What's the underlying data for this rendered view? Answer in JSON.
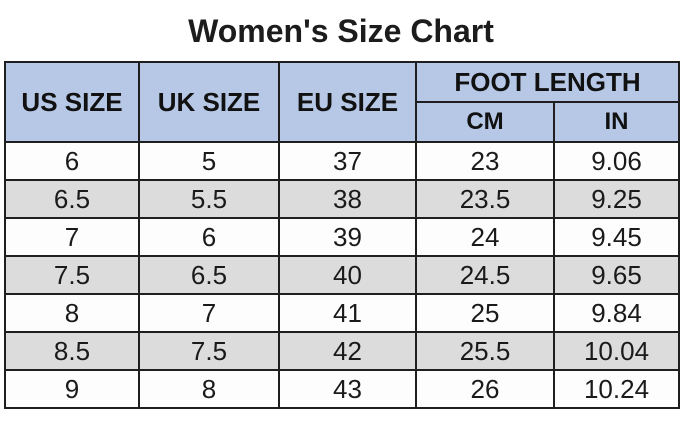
{
  "chart_data": {
    "type": "table",
    "title": "Women's Size Chart",
    "headers": {
      "us_size": "US SIZE",
      "uk_size": "UK SIZE",
      "eu_size": "EU SIZE",
      "foot_length": "FOOT LENGTH",
      "cm": "CM",
      "in": "IN"
    },
    "columns": [
      "US SIZE",
      "UK SIZE",
      "EU SIZE",
      "FOOT LENGTH CM",
      "FOOT LENGTH IN"
    ],
    "rows": [
      [
        "6",
        "5",
        "37",
        "23",
        "9.06"
      ],
      [
        "6.5",
        "5.5",
        "38",
        "23.5",
        "9.25"
      ],
      [
        "7",
        "6",
        "39",
        "24",
        "9.45"
      ],
      [
        "7.5",
        "6.5",
        "40",
        "24.5",
        "9.65"
      ],
      [
        "8",
        "7",
        "41",
        "25",
        "9.84"
      ],
      [
        "8.5",
        "7.5",
        "42",
        "25.5",
        "10.04"
      ],
      [
        "9",
        "8",
        "43",
        "26",
        "10.24"
      ]
    ],
    "layout": {
      "striped_rows": true,
      "header_spans": [
        {
          "label": "FOOT LENGTH",
          "sub_columns": [
            "CM",
            "IN"
          ]
        }
      ]
    }
  },
  "colors": {
    "header_bg": "#b6c8e6",
    "stripe_bg": "#dcdcdc",
    "row_bg": "#fdfdfd",
    "border": "#1f1f1f",
    "text": "#1a1a1a"
  }
}
